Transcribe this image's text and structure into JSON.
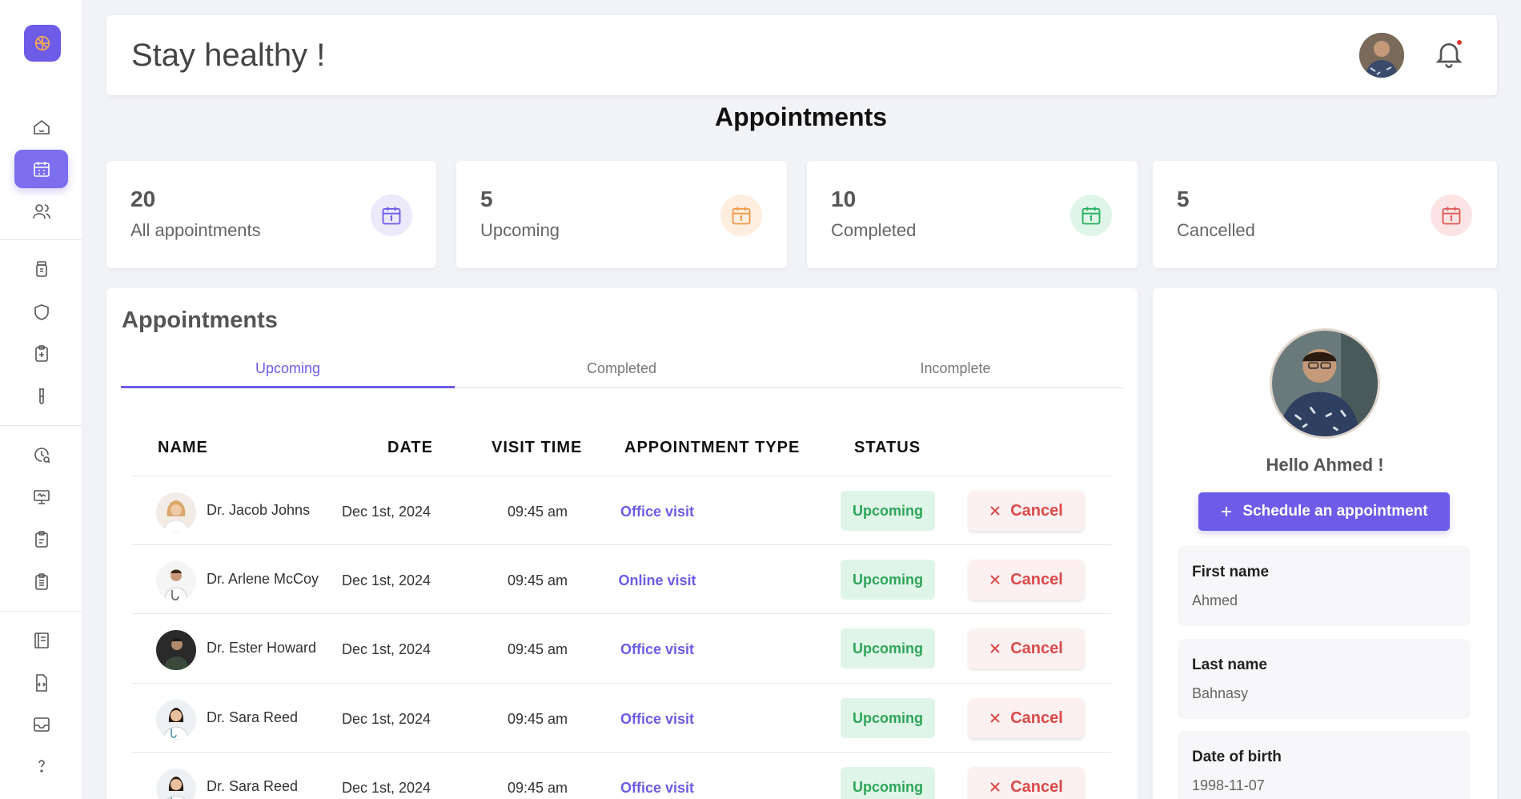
{
  "header": {
    "title": "Stay healthy !"
  },
  "page": {
    "title": "Appointments"
  },
  "stats": [
    {
      "count": "20",
      "label": "All appointments",
      "color": "#6c5ce7",
      "bg": "#ece9fb"
    },
    {
      "count": "5",
      "label": "Upcoming",
      "color": "#f2994a",
      "bg": "#fdeee0"
    },
    {
      "count": "10",
      "label": "Completed",
      "color": "#27ae60",
      "bg": "#dff5e7"
    },
    {
      "count": "5",
      "label": "Cancelled",
      "color": "#e05a5a",
      "bg": "#fce4e4"
    }
  ],
  "appointments": {
    "title": "Appointments",
    "tabs": [
      "Upcoming",
      "Completed",
      "Incomplete"
    ],
    "active_tab": "Upcoming",
    "columns": [
      "NAME",
      "DATE",
      "VISIT TIME",
      "APPOINTMENT TYPE",
      "STATUS"
    ],
    "rows": [
      {
        "name": "Dr. Jacob Johns",
        "date": "Dec 1st, 2024",
        "time": "09:45 am",
        "type": "Office visit",
        "status": "Upcoming",
        "action": "Cancel"
      },
      {
        "name": "Dr. Arlene McCoy",
        "date": "Dec 1st, 2024",
        "time": "09:45 am",
        "type": "Online visit",
        "status": "Upcoming",
        "action": "Cancel"
      },
      {
        "name": "Dr. Ester Howard",
        "date": "Dec 1st, 2024",
        "time": "09:45 am",
        "type": "Office visit",
        "status": "Upcoming",
        "action": "Cancel"
      },
      {
        "name": "Dr. Sara Reed",
        "date": "Dec 1st, 2024",
        "time": "09:45 am",
        "type": "Office visit",
        "status": "Upcoming",
        "action": "Cancel"
      },
      {
        "name": "Dr. Sara Reed",
        "date": "Dec 1st, 2024",
        "time": "09:45 am",
        "type": "Office visit",
        "status": "Upcoming",
        "action": "Cancel"
      }
    ]
  },
  "profile": {
    "greeting": "Hello Ahmed !",
    "schedule_label": "Schedule an appointment",
    "fields": [
      {
        "label": "First name",
        "value": "Ahmed"
      },
      {
        "label": "Last name",
        "value": "Bahnasy"
      },
      {
        "label": "Date of birth",
        "value": "1998-11-07"
      }
    ]
  },
  "sidebar": {
    "icons": [
      "home-icon",
      "calendar-icon",
      "users-icon",
      "medicine-bottle-icon",
      "shield-icon",
      "clipboard-plus-icon",
      "test-tube-icon",
      "clock-search-icon",
      "monitor-icon",
      "clipboard-icon",
      "clipboard-list-icon",
      "book-icon",
      "file-code-icon",
      "inbox-icon",
      "help-icon"
    ],
    "active": "calendar-icon"
  }
}
